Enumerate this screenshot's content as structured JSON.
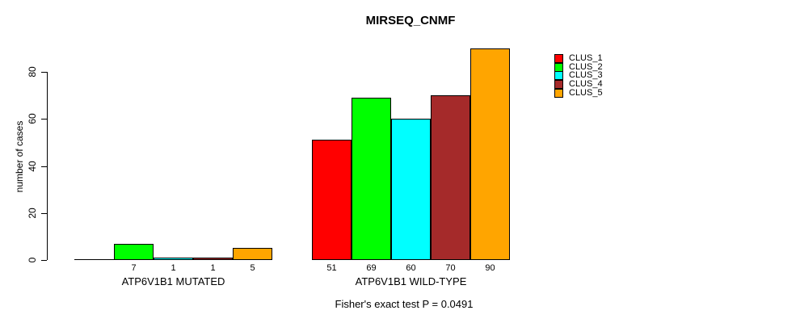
{
  "chart_data": {
    "type": "bar",
    "title": "MIRSEQ_CNMF",
    "ylabel": "number of cases",
    "xlabel": "",
    "ylim": [
      0,
      90
    ],
    "yticks": [
      0,
      20,
      40,
      60,
      80
    ],
    "grid": false,
    "legend_position": "right-outside",
    "categories": [
      "ATP6V1B1 MUTATED",
      "ATP6V1B1 WILD-TYPE"
    ],
    "series": [
      {
        "name": "CLUS_1",
        "color": "#FF0000",
        "values": [
          0,
          51
        ]
      },
      {
        "name": "CLUS_2",
        "color": "#00FF00",
        "values": [
          7,
          69
        ]
      },
      {
        "name": "CLUS_3",
        "color": "#00FFFF",
        "values": [
          1,
          60
        ]
      },
      {
        "name": "CLUS_4",
        "color": "#A52A2A",
        "values": [
          1,
          70
        ]
      },
      {
        "name": "CLUS_5",
        "color": "#FFA500",
        "values": [
          5,
          90
        ]
      }
    ],
    "bar_value_labels": [
      [
        "",
        "7",
        "1",
        "1",
        "5"
      ],
      [
        "51",
        "69",
        "60",
        "70",
        "90"
      ]
    ],
    "annotation": "Fisher's exact test P = 0.0491"
  }
}
